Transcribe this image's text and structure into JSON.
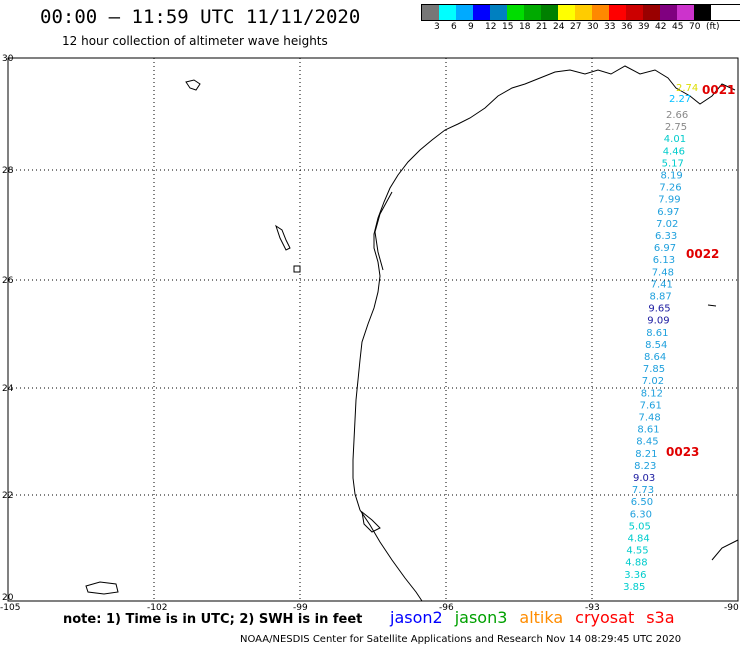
{
  "header": {
    "title": "00:00 – 11:59 UTC 11/11/2020",
    "subtitle": "12 hour collection of altimeter wave heights"
  },
  "legend": {
    "colors": [
      "#777777",
      "#00ffff",
      "#00aaff",
      "#0000ff",
      "#0080c0",
      "#00dd00",
      "#00aa00",
      "#008000",
      "#ffff00",
      "#ffcc00",
      "#ff8800",
      "#ff0000",
      "#cc0000",
      "#990000",
      "#800080",
      "#cc33cc",
      "#000000"
    ],
    "labels": [
      "3",
      "6",
      "9",
      "12",
      "15",
      "18",
      "21",
      "24",
      "27",
      "30",
      "33",
      "36",
      "39",
      "42",
      "45",
      "70",
      "(ft)"
    ]
  },
  "axes": {
    "lat_labels": [
      "30",
      "28",
      "26",
      "24",
      "22",
      "20"
    ],
    "lon_labels": [
      "-105",
      "-102",
      "-99",
      "-96",
      "-93",
      "-90"
    ]
  },
  "track": {
    "labels": [
      {
        "text": "0021"
      },
      {
        "text": "0022"
      },
      {
        "text": "0023"
      }
    ],
    "values": [
      {
        "v": "2.74",
        "c": "#dddd00"
      },
      {
        "v": "2.27",
        "c": "#00bfff"
      },
      {
        "v": "2.66",
        "c": "#888888"
      },
      {
        "v": "2.75",
        "c": "#888888"
      },
      {
        "v": "4.01",
        "c": "#00cccc"
      },
      {
        "v": "4.46",
        "c": "#00cccc"
      },
      {
        "v": "5.17",
        "c": "#00cccc"
      },
      {
        "v": "8.19",
        "c": "#1fa0dd"
      },
      {
        "v": "7.26",
        "c": "#1fa0dd"
      },
      {
        "v": "7.99",
        "c": "#1fa0dd"
      },
      {
        "v": "6.97",
        "c": "#1fa0dd"
      },
      {
        "v": "7.02",
        "c": "#1fa0dd"
      },
      {
        "v": "6.33",
        "c": "#1fa0dd"
      },
      {
        "v": "6.97",
        "c": "#1fa0dd"
      },
      {
        "v": "6.13",
        "c": "#1fa0dd"
      },
      {
        "v": "7.48",
        "c": "#1fa0dd"
      },
      {
        "v": "7.41",
        "c": "#1fa0dd"
      },
      {
        "v": "8.87",
        "c": "#1fa0dd"
      },
      {
        "v": "9.65",
        "c": "#1a1aa0"
      },
      {
        "v": "9.09",
        "c": "#1a1aa0"
      },
      {
        "v": "8.61",
        "c": "#1fa0dd"
      },
      {
        "v": "8.54",
        "c": "#1fa0dd"
      },
      {
        "v": "8.64",
        "c": "#1fa0dd"
      },
      {
        "v": "7.85",
        "c": "#1fa0dd"
      },
      {
        "v": "7.02",
        "c": "#1fa0dd"
      },
      {
        "v": "8.12",
        "c": "#1fa0dd"
      },
      {
        "v": "7.61",
        "c": "#1fa0dd"
      },
      {
        "v": "7.48",
        "c": "#1fa0dd"
      },
      {
        "v": "8.61",
        "c": "#1fa0dd"
      },
      {
        "v": "8.45",
        "c": "#1fa0dd"
      },
      {
        "v": "8.21",
        "c": "#1fa0dd"
      },
      {
        "v": "8.23",
        "c": "#1fa0dd"
      },
      {
        "v": "9.03",
        "c": "#1a1aa0"
      },
      {
        "v": "7.73",
        "c": "#1fa0dd"
      },
      {
        "v": "6.50",
        "c": "#1fa0dd"
      },
      {
        "v": "6.30",
        "c": "#1fa0dd"
      },
      {
        "v": "5.05",
        "c": "#00cccc"
      },
      {
        "v": "4.84",
        "c": "#00cccc"
      },
      {
        "v": "4.55",
        "c": "#00cccc"
      },
      {
        "v": "4.88",
        "c": "#00cccc"
      },
      {
        "v": "3.36",
        "c": "#00cccc"
      },
      {
        "v": "3.85",
        "c": "#00cccc"
      }
    ]
  },
  "footer": {
    "note": "note: 1) Time is in UTC; 2) SWH is in feet",
    "satellites": [
      {
        "name": "jason2",
        "color": "#0000ff"
      },
      {
        "name": "jason3",
        "color": "#00a000"
      },
      {
        "name": "altika",
        "color": "#ff8c00"
      },
      {
        "name": "cryosat",
        "color": "#ff0000"
      },
      {
        "name": "s3a",
        "color": "#ff0000"
      }
    ],
    "credit": "NOAA/NESDIS Center for Satellite Applications and Research    Nov 14 08:29:45 UTC 2020"
  }
}
